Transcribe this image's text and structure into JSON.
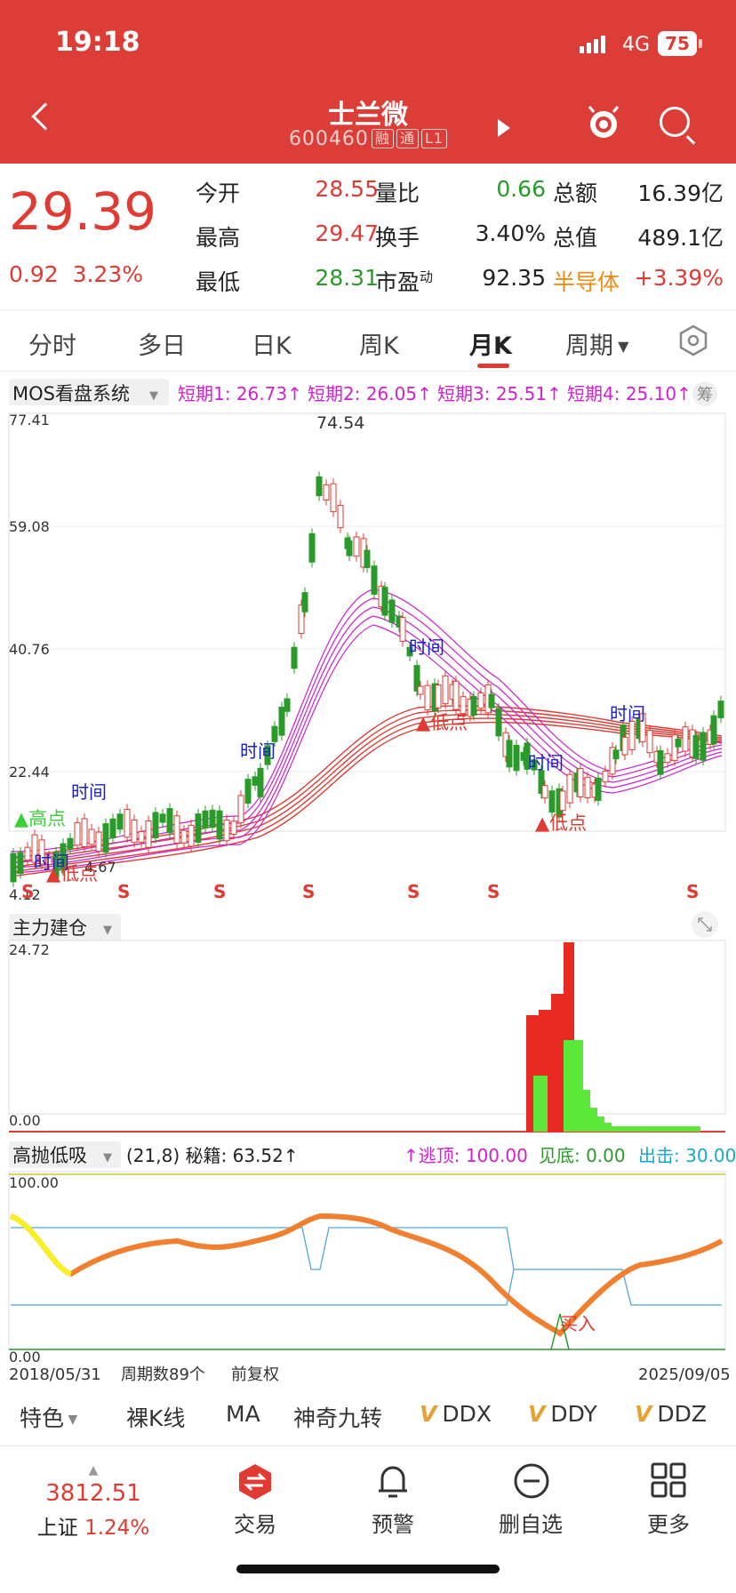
{
  "status": {
    "time": "19:18",
    "network": "4G",
    "battery": "75"
  },
  "header": {
    "title": "士兰微",
    "code": "600460",
    "tags": [
      "融",
      "通",
      "L1"
    ]
  },
  "quote": {
    "price": "29.39",
    "change": "0.92",
    "pct": "3.23%",
    "rows": [
      {
        "l1": "今开",
        "v1": "28.55",
        "l2": "量比",
        "v2": "0.66",
        "l3": "总额",
        "v3": "16.39亿"
      },
      {
        "l1": "最高",
        "v1": "29.47",
        "l2": "换手",
        "v2": "3.40%",
        "l3": "总值",
        "v3": "489.1亿"
      },
      {
        "l1": "最低",
        "v1": "28.31",
        "l2": "市盈",
        "v2": "92.35",
        "l3": "半导体",
        "v3": "+3.39%"
      }
    ],
    "pe_sup": "动"
  },
  "tabs": [
    "分时",
    "多日",
    "日K",
    "周K",
    "月K",
    "周期"
  ],
  "active_tab": "月K",
  "main": {
    "indicator": "MOS看盘系统",
    "legend": [
      "短期1: 26.73↑",
      "短期2: 26.05↑",
      "短期3: 25.51↑",
      "短期4: 25.10↑"
    ],
    "side": "筹",
    "y_labels": [
      "77.41",
      "59.08",
      "40.76",
      "22.44",
      "4.12"
    ],
    "peak": "74.54",
    "low_label": "4.67",
    "annot_time": "时间",
    "annot_low": "低点",
    "annot_high": "高点",
    "s_mark": "S"
  },
  "sub1": {
    "indicator": "主力建仓",
    "top": "24.72",
    "bottom": "0.00"
  },
  "sub2": {
    "indicator": "高抛低吸",
    "params": "(21,8) 秘籍: 63.52↑",
    "escape": "↑逃顶: 100.00",
    "seebottom": "见底: 0.00",
    "out": "出击: 30.00",
    "top": "100.00",
    "bottom": "0.00",
    "buy": "买入"
  },
  "footer": {
    "start": "2018/05/31",
    "count": "周期数89个",
    "adjust": "前复权",
    "end": "2025/09/05"
  },
  "bottom_tools": [
    "特色",
    "裸K线",
    "MA",
    "神奇九转",
    "DDX",
    "DDY",
    "DDZ"
  ],
  "nav": {
    "index_value": "3812.51",
    "index_name": "上证",
    "index_pct": "1.24%",
    "items": [
      "交易",
      "预警",
      "删自选",
      "更多"
    ]
  },
  "colors": {
    "brand": "#dc3e37",
    "up": "#e03a33",
    "down": "#2a9a2a",
    "ma": "#d020d0"
  }
}
